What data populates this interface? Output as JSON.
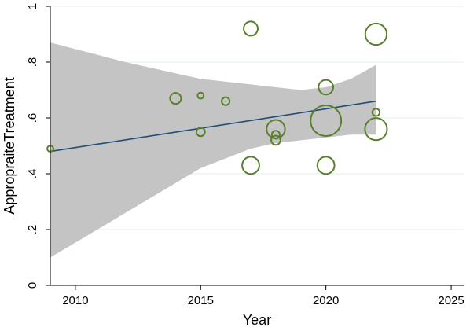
{
  "chart_data": {
    "type": "scatter",
    "xlabel": "Year",
    "ylabel": "AppropraiteTreatment",
    "xlim": [
      2009,
      2025.5
    ],
    "ylim": [
      0,
      1.0
    ],
    "x_ticks": [
      2010,
      2015,
      2020,
      2025
    ],
    "y_ticks": [
      0,
      0.2,
      0.4,
      0.6,
      0.8,
      1.0
    ],
    "x_tick_labels": [
      "2010",
      "2015",
      "2020",
      "2025"
    ],
    "y_tick_labels": [
      "0",
      ".2",
      ".4",
      ".6",
      ".8",
      "1"
    ],
    "grid": "horizontal",
    "legend": "none",
    "points": [
      {
        "x": 2009,
        "y": 0.49,
        "weight": 1.0
      },
      {
        "x": 2014,
        "y": 0.67,
        "weight": 1.8
      },
      {
        "x": 2015,
        "y": 0.68,
        "weight": 1.0
      },
      {
        "x": 2015,
        "y": 0.55,
        "weight": 1.4
      },
      {
        "x": 2016,
        "y": 0.66,
        "weight": 1.3
      },
      {
        "x": 2017,
        "y": 0.92,
        "weight": 2.3
      },
      {
        "x": 2017,
        "y": 0.43,
        "weight": 2.8
      },
      {
        "x": 2018,
        "y": 0.56,
        "weight": 3.0
      },
      {
        "x": 2018,
        "y": 0.54,
        "weight": 1.3
      },
      {
        "x": 2018,
        "y": 0.52,
        "weight": 1.5
      },
      {
        "x": 2020,
        "y": 0.71,
        "weight": 2.4
      },
      {
        "x": 2020,
        "y": 0.59,
        "weight": 5.0
      },
      {
        "x": 2020,
        "y": 0.43,
        "weight": 2.8
      },
      {
        "x": 2022,
        "y": 0.9,
        "weight": 3.5
      },
      {
        "x": 2022,
        "y": 0.62,
        "weight": 1.2
      },
      {
        "x": 2022,
        "y": 0.56,
        "weight": 3.6
      }
    ],
    "fit_line": {
      "x": [
        2009,
        2022
      ],
      "y": [
        0.48,
        0.66
      ]
    },
    "confidence_band": {
      "x": [
        2009,
        2012,
        2015,
        2017,
        2018,
        2019,
        2020,
        2021,
        2022
      ],
      "upper": [
        0.87,
        0.8,
        0.74,
        0.72,
        0.71,
        0.7,
        0.71,
        0.74,
        0.79
      ],
      "lower": [
        0.1,
        0.26,
        0.42,
        0.49,
        0.51,
        0.52,
        0.53,
        0.54,
        0.54
      ]
    },
    "colors": {
      "marker": "#5a7f2a",
      "fit_line": "#1f4e79",
      "band": "#c4c4c4",
      "grid": "#e3ecef",
      "axis": "#000000"
    }
  }
}
